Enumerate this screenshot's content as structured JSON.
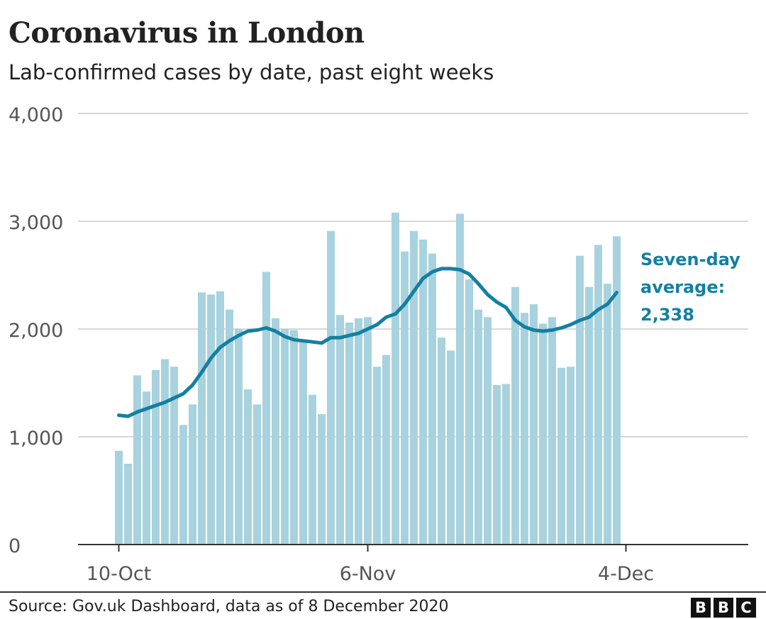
{
  "header": {
    "title": "Coronavirus in London",
    "subtitle": "Lab-confirmed cases by date, past eight weeks"
  },
  "chart_data": {
    "type": "bar",
    "title": "Coronavirus in London",
    "subtitle": "Lab-confirmed cases by date, past eight weeks",
    "xlabel": "",
    "ylabel": "",
    "ylim": [
      0,
      4000
    ],
    "yticks": [
      0,
      1000,
      2000,
      3000,
      4000
    ],
    "ytick_labels": [
      "0",
      "1,000",
      "2,000",
      "3,000",
      "4,000"
    ],
    "xticks": [
      {
        "index": 0,
        "label": "10-Oct"
      },
      {
        "index": 27,
        "label": "6-Nov"
      },
      {
        "index": 55,
        "label": "4-Dec"
      }
    ],
    "grid": true,
    "series": [
      {
        "name": "Lab-confirmed cases",
        "type": "bar",
        "values": [
          870,
          750,
          1570,
          1420,
          1620,
          1720,
          1650,
          1110,
          1300,
          2340,
          2320,
          2350,
          2180,
          2000,
          1440,
          1300,
          2530,
          2100,
          2000,
          1990,
          1880,
          1390,
          1210,
          2910,
          2130,
          2060,
          2100,
          2110,
          1650,
          1760,
          3080,
          2720,
          2910,
          2830,
          2700,
          1920,
          1800,
          3070,
          2460,
          2180,
          2110,
          1480,
          1490,
          2390,
          2150,
          2230,
          2050,
          2110,
          1640,
          1650,
          2680,
          2390,
          2780,
          2420,
          2860
        ]
      },
      {
        "name": "Seven-day average",
        "type": "line",
        "values": [
          1200,
          1190,
          1230,
          1260,
          1290,
          1320,
          1360,
          1400,
          1480,
          1600,
          1730,
          1830,
          1890,
          1940,
          1980,
          1990,
          2010,
          1980,
          1930,
          1900,
          1890,
          1880,
          1870,
          1920,
          1920,
          1940,
          1960,
          2000,
          2040,
          2110,
          2140,
          2230,
          2350,
          2470,
          2530,
          2560,
          2560,
          2550,
          2510,
          2420,
          2320,
          2250,
          2200,
          2080,
          2020,
          1990,
          1980,
          1990,
          2010,
          2040,
          2080,
          2110,
          2180,
          2230,
          2338
        ]
      }
    ],
    "annotation": {
      "line1": "Seven-day",
      "line2": "average:",
      "line3": "2,338"
    },
    "colors": {
      "bar": "#a8d2de",
      "line": "#1380a1",
      "grid": "#cccccc",
      "axis": "#333333"
    }
  },
  "footer": {
    "source": "Source: Gov.uk Dashboard, data as of 8 December 2020",
    "logo_letters": [
      "B",
      "B",
      "C"
    ]
  }
}
